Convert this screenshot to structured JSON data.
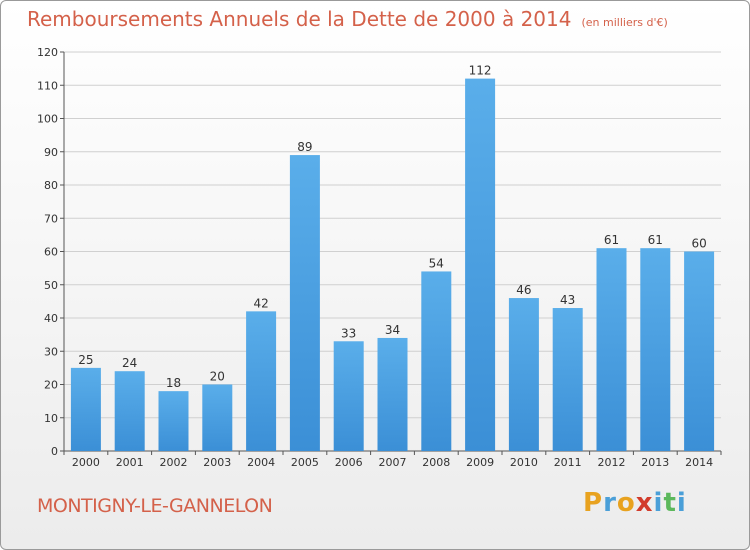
{
  "chart_data": {
    "type": "bar",
    "title": "Remboursements Annuels de la Dette de 2000 à 2014",
    "subtitle": "(en milliers d'€)",
    "categories": [
      "2000",
      "2001",
      "2002",
      "2003",
      "2004",
      "2005",
      "2006",
      "2007",
      "2008",
      "2009",
      "2010",
      "2011",
      "2012",
      "2013",
      "2014"
    ],
    "values": [
      25,
      24,
      18,
      20,
      42,
      89,
      33,
      34,
      54,
      112,
      46,
      43,
      61,
      61,
      60
    ],
    "ylim": [
      0,
      120
    ],
    "yticks": [
      0,
      10,
      20,
      30,
      40,
      50,
      60,
      70,
      80,
      90,
      100,
      110,
      120
    ],
    "grid": true,
    "legend": "none",
    "bar_color": "#3b8fd6",
    "bar_color_light": "#5aaeea",
    "grid_color": "#d0d0d0"
  },
  "footer": {
    "commune": "MONTIGNY-LE-GANNELON",
    "logo_letters": [
      "P",
      "r",
      "o",
      "x",
      "i",
      "t",
      "i"
    ],
    "logo_colors": [
      "#e8a21f",
      "#4a9fd8",
      "#e8a21f",
      "#d23c2c",
      "#4a9fd8",
      "#5cb85c",
      "#4a9fd8"
    ]
  }
}
